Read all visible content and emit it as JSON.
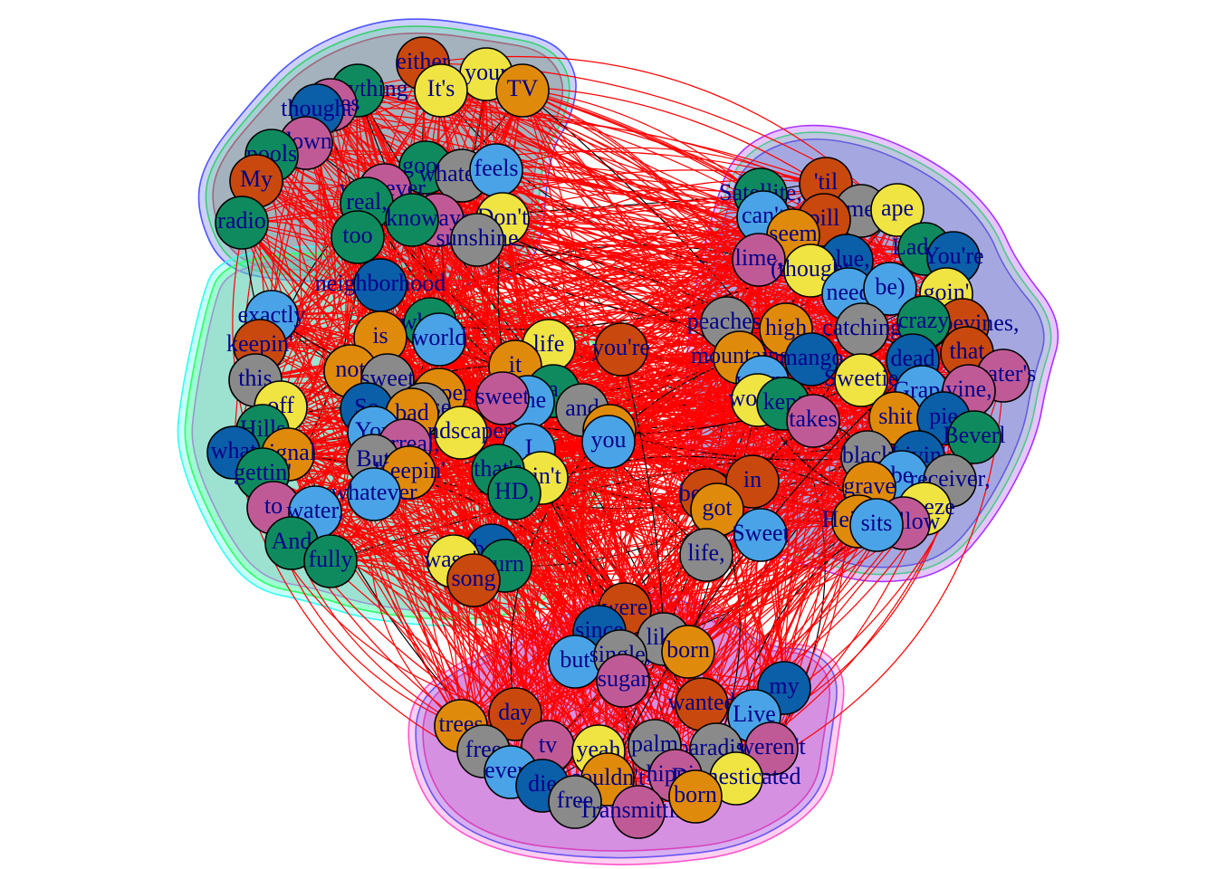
{
  "palette": {
    "orange": "#e08a0b",
    "yellow": "#f0e442",
    "green": "#0f8a5f",
    "blue": "#0b5ea8",
    "sky": "#4aa3e6",
    "pink": "#c05a96",
    "gray": "#8a8a8a",
    "rust": "#c9480e",
    "edge": "#ff0000"
  },
  "clusters": [
    {
      "id": "top-left",
      "hull_colors": [
        "#ff3355",
        "#33ff33",
        "#4d55ff"
      ]
    },
    {
      "id": "left",
      "hull_colors": [
        "#ff33ff",
        "#33ff33",
        "#33ffee"
      ]
    },
    {
      "id": "right",
      "hull_colors": [
        "#5533ff",
        "#33ff66",
        "#aa33ff"
      ]
    },
    {
      "id": "bottom",
      "hull_colors": [
        "#ff3399",
        "#3355ff",
        "#ff55cc"
      ]
    }
  ],
  "nodes": [
    {
      "label": "either",
      "color": "rust"
    },
    {
      "label": "your",
      "color": "yellow"
    },
    {
      "label": "everything",
      "color": "green"
    },
    {
      "label": "waves",
      "color": "pink"
    },
    {
      "label": "It's",
      "color": "yellow"
    },
    {
      "label": "TV",
      "color": "orange"
    },
    {
      "label": "thought",
      "color": "blue"
    },
    {
      "label": "down",
      "color": "pink"
    },
    {
      "label": "pools",
      "color": "green"
    },
    {
      "label": "My",
      "color": "rust"
    },
    {
      "label": "radio",
      "color": "green"
    },
    {
      "label": "good",
      "color": "green"
    },
    {
      "label": "whatever",
      "color": "gray"
    },
    {
      "label": "feels",
      "color": "sky"
    },
    {
      "label": "whatever,",
      "color": "pink"
    },
    {
      "label": "real,",
      "color": "green"
    },
    {
      "label": "always",
      "color": "pink"
    },
    {
      "label": "Don't",
      "color": "yellow"
    },
    {
      "label": "know",
      "color": "green"
    },
    {
      "label": "too",
      "color": "green"
    },
    {
      "label": "sunshine",
      "color": "gray"
    },
    {
      "label": "neighborhood",
      "color": "blue"
    },
    {
      "label": "exactly",
      "color": "sky"
    },
    {
      "label": "keepin'",
      "color": "rust"
    },
    {
      "label": "whose",
      "color": "green"
    },
    {
      "label": "world",
      "color": "sky"
    },
    {
      "label": "is",
      "color": "orange"
    },
    {
      "label": "this",
      "color": "gray"
    },
    {
      "label": "not",
      "color": "orange"
    },
    {
      "label": "sweet",
      "color": "gray"
    },
    {
      "label": "keeper",
      "color": "orange"
    },
    {
      "label": "off",
      "color": "yellow"
    },
    {
      "label": "So",
      "color": "blue"
    },
    {
      "label": "house",
      "color": "gray"
    },
    {
      "label": "bad",
      "color": "orange"
    },
    {
      "label": "Hills",
      "color": "green"
    },
    {
      "label": "You",
      "color": "sky"
    },
    {
      "label": "landscaper",
      "color": "yellow"
    },
    {
      "label": "what",
      "color": "blue"
    },
    {
      "label": "signal",
      "color": "orange"
    },
    {
      "label": "surreal,",
      "color": "pink"
    },
    {
      "label": "But",
      "color": "gray"
    },
    {
      "label": "Keepin'",
      "color": "orange"
    },
    {
      "label": "gettin'",
      "color": "green"
    },
    {
      "label": "whatever",
      "color": "sky"
    },
    {
      "label": "to",
      "color": "pink"
    },
    {
      "label": "water,",
      "color": "sky"
    },
    {
      "label": "And",
      "color": "green"
    },
    {
      "label": "fully",
      "color": "green"
    },
    {
      "label": "life",
      "color": "yellow"
    },
    {
      "label": "it",
      "color": "orange"
    },
    {
      "label": "you're",
      "color": "rust"
    },
    {
      "label": "a",
      "color": "green"
    },
    {
      "label": "The",
      "color": "sky"
    },
    {
      "label": "sweet",
      "color": "pink"
    },
    {
      "label": "and",
      "color": "gray"
    },
    {
      "label": "the",
      "color": "orange"
    },
    {
      "label": "you",
      "color": "sky"
    },
    {
      "label": "I",
      "color": "sky"
    },
    {
      "label": "ain't",
      "color": "yellow"
    },
    {
      "label": "that's",
      "color": "green"
    },
    {
      "label": "HD,",
      "color": "green"
    },
    {
      "label": "best",
      "color": "blue"
    },
    {
      "label": "wasn't",
      "color": "yellow"
    },
    {
      "label": "turn",
      "color": "green"
    },
    {
      "label": "song",
      "color": "rust"
    },
    {
      "label": "'til",
      "color": "rust"
    },
    {
      "label": "Satellite,",
      "color": "green"
    },
    {
      "label": "times,",
      "color": "gray"
    },
    {
      "label": "ape",
      "color": "yellow"
    },
    {
      "label": "pill",
      "color": "rust"
    },
    {
      "label": "can't",
      "color": "sky"
    },
    {
      "label": "seem",
      "color": "orange"
    },
    {
      "label": "Ladera",
      "color": "green"
    },
    {
      "label": "lime,",
      "color": "pink"
    },
    {
      "label": "blue,",
      "color": "blue"
    },
    {
      "label": "You're",
      "color": "blue"
    },
    {
      "label": "(thought",
      "color": "yellow"
    },
    {
      "label": "need",
      "color": "sky"
    },
    {
      "label": "be)",
      "color": "sky"
    },
    {
      "label": "goin'",
      "color": "yellow"
    },
    {
      "label": "Grapevines,",
      "color": "rust"
    },
    {
      "label": "crazy",
      "color": "green"
    },
    {
      "label": "peaches,",
      "color": "gray"
    },
    {
      "label": "high",
      "color": "orange"
    },
    {
      "label": "catching",
      "color": "gray"
    },
    {
      "label": "that",
      "color": "rust"
    },
    {
      "label": "mountains",
      "color": "orange"
    },
    {
      "label": "mango",
      "color": "blue"
    },
    {
      "label": "dead",
      "color": "blue"
    },
    {
      "label": "water's",
      "color": "pink"
    },
    {
      "label": "warm",
      "color": "sky"
    },
    {
      "label": "Sweetie",
      "color": "yellow"
    },
    {
      "label": "Grape",
      "color": "sky"
    },
    {
      "label": "vine,",
      "color": "pink"
    },
    {
      "label": "would",
      "color": "yellow"
    },
    {
      "label": "kept",
      "color": "green"
    },
    {
      "label": "takes",
      "color": "pink"
    },
    {
      "label": "shit",
      "color": "orange"
    },
    {
      "label": "pie",
      "color": "blue"
    },
    {
      "label": "Beverl",
      "color": "green"
    },
    {
      "label": "black",
      "color": "gray"
    },
    {
      "label": "Livin'",
      "color": "blue"
    },
    {
      "label": "be",
      "color": "sky"
    },
    {
      "label": "receiver,",
      "color": "gray"
    },
    {
      "label": "grave",
      "color": "orange"
    },
    {
      "label": "breeze",
      "color": "yellow"
    },
    {
      "label": "Heights",
      "color": "orange"
    },
    {
      "label": "shallow",
      "color": "pink"
    },
    {
      "label": "sits",
      "color": "sky"
    },
    {
      "label": "beach",
      "color": "rust"
    },
    {
      "label": "in",
      "color": "rust"
    },
    {
      "label": "got",
      "color": "orange"
    },
    {
      "label": "life,",
      "color": "gray"
    },
    {
      "label": "Sweet",
      "color": "sky"
    },
    {
      "label": "were",
      "color": "rust"
    },
    {
      "label": "since",
      "color": "blue"
    },
    {
      "label": "like",
      "color": "gray"
    },
    {
      "label": "born",
      "color": "orange"
    },
    {
      "label": "but",
      "color": "sky"
    },
    {
      "label": "single,",
      "color": "gray"
    },
    {
      "label": "sugar",
      "color": "pink"
    },
    {
      "label": "my",
      "color": "blue"
    },
    {
      "label": "wanted",
      "color": "rust"
    },
    {
      "label": "Live",
      "color": "sky"
    },
    {
      "label": "day",
      "color": "rust"
    },
    {
      "label": "trees",
      "color": "orange"
    },
    {
      "label": "paradise",
      "color": "gray"
    },
    {
      "label": "weren't",
      "color": "pink"
    },
    {
      "label": "free",
      "color": "gray"
    },
    {
      "label": "tv",
      "color": "pink"
    },
    {
      "label": "yeah",
      "color": "yellow"
    },
    {
      "label": "palm",
      "color": "gray"
    },
    {
      "label": "every",
      "color": "sky"
    },
    {
      "label": "die",
      "color": "blue"
    },
    {
      "label": "couldn't",
      "color": "orange"
    },
    {
      "label": "hippie",
      "color": "pink"
    },
    {
      "label": "Domesticated",
      "color": "yellow"
    },
    {
      "label": "free",
      "color": "gray"
    },
    {
      "label": "Transmitting",
      "color": "pink"
    },
    {
      "label": "born",
      "color": "orange"
    }
  ]
}
